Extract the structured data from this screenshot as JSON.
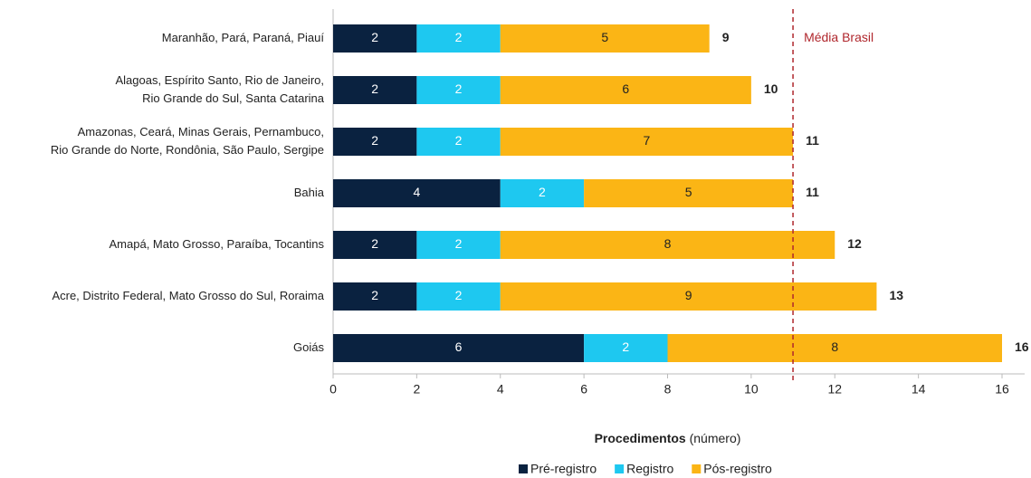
{
  "chart_data": {
    "type": "stacked-barh",
    "categories": [
      [
        "Maranhão, Pará, Paraná, Piauí"
      ],
      [
        "Alagoas, Espírito Santo, Rio de Janeiro,",
        "Rio Grande do Sul, Santa Catarina"
      ],
      [
        "Amazonas, Ceará, Minas Gerais, Pernambuco,",
        "Rio Grande do Norte, Rondônia, São Paulo, Sergipe"
      ],
      [
        "Bahia"
      ],
      [
        "Amapá, Mato Grosso, Paraíba, Tocantins"
      ],
      [
        "Acre, Distrito Federal, Mato Grosso do Sul, Roraima"
      ],
      [
        "Goiás"
      ]
    ],
    "series": [
      {
        "name": "Pré-registro",
        "color": "#0a2240",
        "label_color": "#ffffff",
        "values": [
          2,
          2,
          2,
          4,
          2,
          2,
          6
        ]
      },
      {
        "name": "Registro",
        "color": "#1ec8f0",
        "label_color": "#ffffff",
        "values": [
          2,
          2,
          2,
          2,
          2,
          2,
          2
        ]
      },
      {
        "name": "Pós-registro",
        "color": "#fbb515",
        "label_color": "#222222",
        "values": [
          5,
          6,
          7,
          5,
          8,
          9,
          8
        ]
      }
    ],
    "totals": [
      9,
      10,
      11,
      11,
      12,
      13,
      16
    ],
    "reference": {
      "value": 11,
      "label": "Média Brasil",
      "color": "#b0272d"
    },
    "xlabel": "Procedimentos",
    "xlabel_note": "(número)",
    "xlim": [
      0,
      16
    ],
    "xticks": [
      0,
      2,
      4,
      6,
      8,
      10,
      12,
      14,
      16
    ],
    "legend": "bottom"
  }
}
